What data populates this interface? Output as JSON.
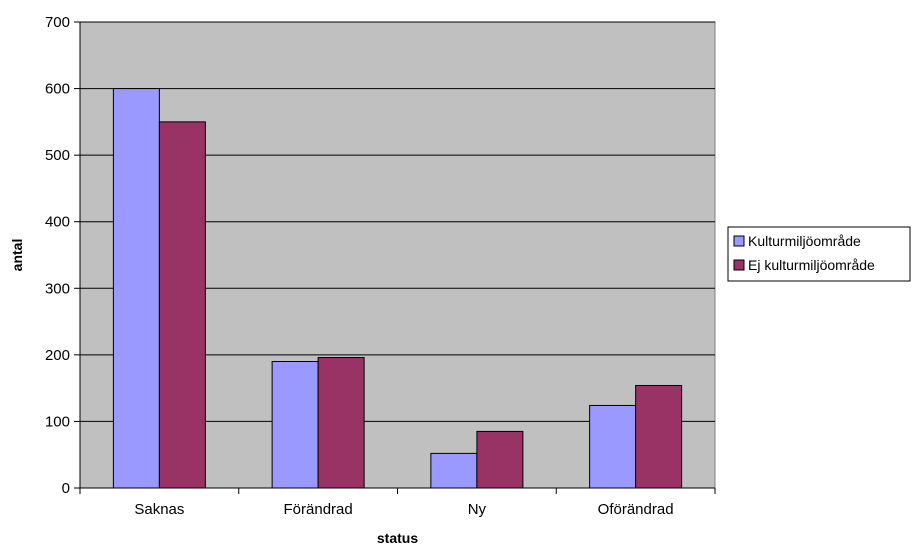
{
  "chart_data": {
    "type": "bar",
    "title": "",
    "xlabel": "status",
    "ylabel": "antal",
    "categories": [
      "Saknas",
      "Förändrad",
      "Ny",
      "Oförändrad"
    ],
    "series": [
      {
        "name": "Kulturmiljöområde",
        "values": [
          600,
          190,
          52,
          124
        ],
        "color": "#9999ff"
      },
      {
        "name": "Ej kulturmiljöområde",
        "values": [
          550,
          196,
          85,
          154
        ],
        "color": "#993366"
      }
    ],
    "ylim": [
      0,
      700
    ],
    "yticks": [
      0,
      100,
      200,
      300,
      400,
      500,
      600,
      700
    ],
    "grid": true,
    "plot_background": "#c0c0c0",
    "legend_position": "right"
  }
}
